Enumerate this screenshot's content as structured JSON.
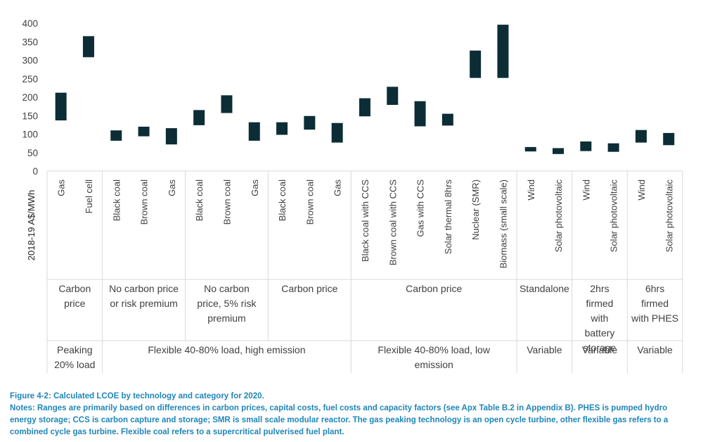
{
  "chart_data": {
    "type": "floating-bar",
    "title": "",
    "ylabel": "2018-19 A$/MWh",
    "xlabel": "",
    "ylim": [
      0,
      400
    ],
    "yticks": [
      0,
      50,
      100,
      150,
      200,
      250,
      300,
      350,
      400
    ],
    "grid": false,
    "bar_color": "#0c2d35",
    "categories": [
      "Gas",
      "Fuel cell",
      "Black coal",
      "Brown coal",
      "Gas",
      "Black coal",
      "Brown coal",
      "Gas",
      "Black coal",
      "Brown coal",
      "Gas",
      "Black coal with CCS",
      "Brown coal with CCS",
      "Gas with CCS",
      "Solar thermal 8hrs",
      "Nuclear (SMR)",
      "Biomass (small scale)",
      "Wind",
      "Solar photovoltaic",
      "Wind",
      "Solar photovoltaic",
      "Wind",
      "Solar photovoltaic"
    ],
    "ranges": [
      [
        137,
        212
      ],
      [
        308,
        365
      ],
      [
        82,
        110
      ],
      [
        94,
        120
      ],
      [
        72,
        116
      ],
      [
        124,
        165
      ],
      [
        157,
        205
      ],
      [
        82,
        132
      ],
      [
        98,
        132
      ],
      [
        112,
        149
      ],
      [
        77,
        130
      ],
      [
        148,
        197
      ],
      [
        179,
        228
      ],
      [
        121,
        189
      ],
      [
        123,
        155
      ],
      [
        252,
        326
      ],
      [
        252,
        396
      ],
      [
        53,
        65
      ],
      [
        46,
        62
      ],
      [
        54,
        80
      ],
      [
        52,
        75
      ],
      [
        77,
        111
      ],
      [
        70,
        103
      ]
    ],
    "groups_row1": [
      {
        "label": "Carbon price",
        "span": 2
      },
      {
        "label": "No carbon price or risk premium",
        "span": 3
      },
      {
        "label": "No carbon price, 5% risk premium",
        "span": 3
      },
      {
        "label": "Carbon price",
        "span": 3
      },
      {
        "label": "Carbon price",
        "span": 6
      },
      {
        "label": "Standalone",
        "span": 2
      },
      {
        "label": "2hrs firmed with battery storage",
        "span": 2
      },
      {
        "label": "6hrs firmed with PHES",
        "span": 2
      }
    ],
    "groups_row2": [
      {
        "label": "Peaking 20% load",
        "span": 2
      },
      {
        "label": "Flexible 40-80% load, high emission",
        "span": 9
      },
      {
        "label": "Flexible 40-80% load, low emission",
        "span": 6
      },
      {
        "label": "Variable",
        "span": 2
      },
      {
        "label": "Variable",
        "span": 2
      },
      {
        "label": "Variable",
        "span": 2
      }
    ]
  },
  "caption": {
    "figure": "Figure 4-2: Calculated LCOE by technology and category for 2020.",
    "notes": "Notes: Ranges are primarily based on differences in carbon prices, capital costs, fuel costs and capacity factors (see Apx Table B.2 in Appendix B). PHES is pumped hydro energy storage; CCS is carbon capture and storage; SMR is small scale modular reactor. The gas peaking technology is an open cycle turbine, other flexible gas refers to a combined cycle gas turbine. Flexible coal refers to a supercritical pulverised fuel plant."
  }
}
